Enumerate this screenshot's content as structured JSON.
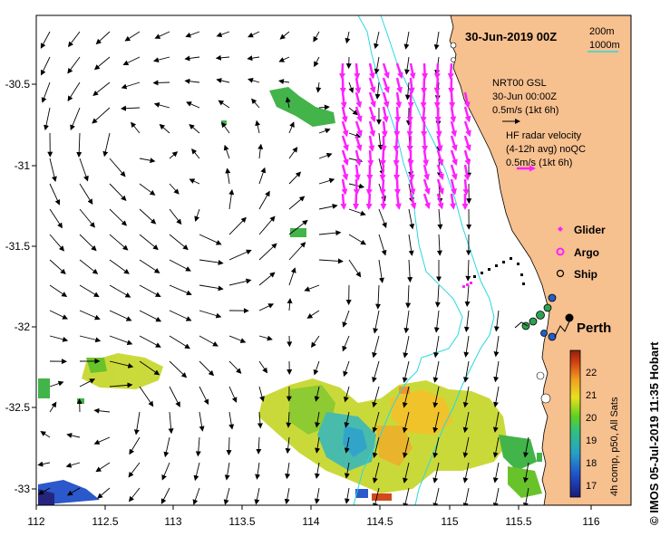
{
  "title": "30-Jun-2019 00Z",
  "isobaths": [
    "200m",
    "1000m"
  ],
  "x_ticks": [
    "112",
    "112.5",
    "113",
    "113.5",
    "114",
    "114.5",
    "115",
    "115.5",
    "116"
  ],
  "y_ticks": [
    "-30.5",
    "-31",
    "-31.5",
    "-32",
    "-32.5",
    "-33"
  ],
  "model_legend": {
    "line1": "NRT00 GSL",
    "line2": "30-Jun 00:00Z",
    "line3": "0.5m/s (1kt 6h)"
  },
  "radar_legend": {
    "line1": "HF radar velocity",
    "line2": "(4-12h avg) noQC",
    "line3": "0.5m/s (1kt 6h)"
  },
  "platforms": {
    "glider": "Glider",
    "argo": "Argo",
    "ship": "Ship"
  },
  "city": "Perth",
  "colorbar": {
    "ticks": [
      "22",
      "21",
      "20",
      "19",
      "18",
      "17"
    ],
    "label": "4h comp, p50, All Sats"
  },
  "credit": "© IMOS 05-Jul-2019 11:35 Hobart",
  "colors": {
    "land": "#f7c08f",
    "isobath": "#28d8e0",
    "radar": "#ff20ff",
    "arrow": "#000000"
  }
}
